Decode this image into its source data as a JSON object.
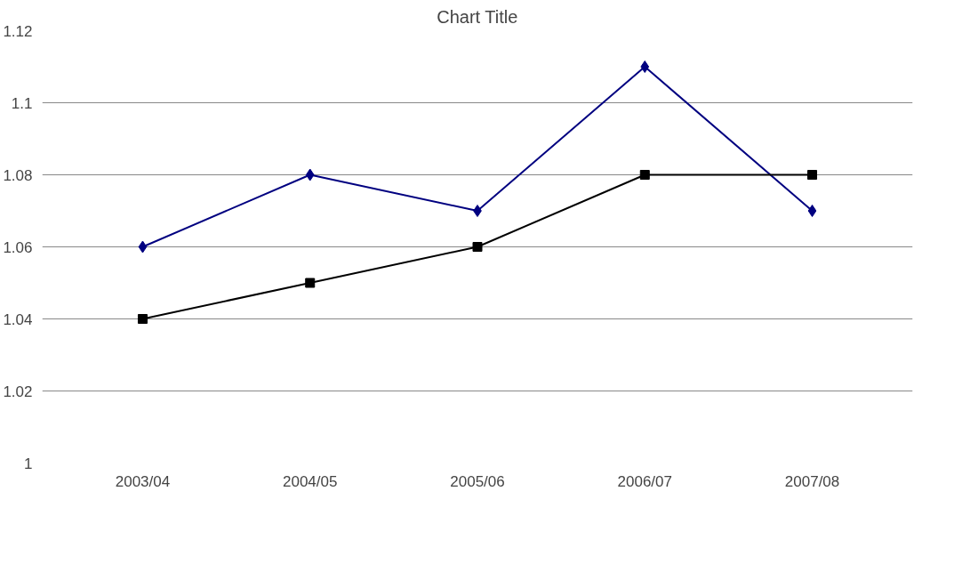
{
  "chart_data": {
    "type": "line",
    "title": "Chart Title",
    "categories": [
      "2003/04",
      "2004/05",
      "2005/06",
      "2006/07",
      "2007/08"
    ],
    "series": [
      {
        "color": "#000080",
        "marker": "diamond",
        "values": [
          1.06,
          1.08,
          1.07,
          1.11,
          1.07
        ]
      },
      {
        "color": "#000000",
        "marker": "square",
        "values": [
          1.04,
          1.05,
          1.06,
          1.08,
          1.08
        ]
      }
    ],
    "ylim": [
      1,
      1.12
    ],
    "yticks": [
      1,
      1.02,
      1.04,
      1.06,
      1.08,
      1.1,
      1.12
    ],
    "grid": "y",
    "line_style": "solid"
  }
}
